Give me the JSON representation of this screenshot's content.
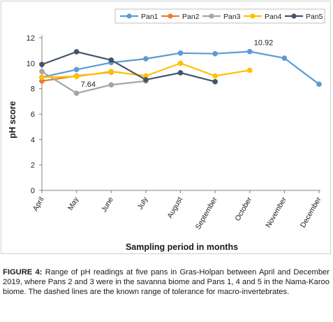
{
  "chart_data": {
    "type": "line",
    "xlabel": "Sampling period in months",
    "ylabel": "pH score",
    "categories": [
      "April",
      "May",
      "June",
      "July",
      "August",
      "September",
      "October",
      "November",
      "December"
    ],
    "ylim": [
      0,
      12
    ],
    "yticks": [
      0,
      2,
      4,
      6,
      8,
      10,
      12
    ],
    "grid": false,
    "legend_position": "top",
    "series": [
      {
        "name": "Pan1",
        "color": "#5b9bd5",
        "values": [
          8.9,
          9.5,
          10.05,
          10.35,
          10.8,
          10.75,
          10.92,
          10.4,
          8.35
        ]
      },
      {
        "name": "Pan2",
        "color": "#ed7d31",
        "values": [
          8.6,
          9.0,
          9.3,
          null,
          null,
          null,
          null,
          null,
          null
        ]
      },
      {
        "name": "Pan3",
        "color": "#a5a5a5",
        "values": [
          9.35,
          7.64,
          8.3,
          8.6,
          null,
          null,
          null,
          null,
          null
        ]
      },
      {
        "name": "Pan4",
        "color": "#ffc000",
        "values": [
          8.9,
          8.95,
          9.35,
          9.0,
          10.0,
          9.0,
          9.45,
          null,
          null
        ]
      },
      {
        "name": "Pan5",
        "color": "#44546a",
        "values": [
          9.9,
          10.9,
          10.25,
          8.7,
          9.25,
          8.55,
          null,
          null,
          null
        ]
      }
    ],
    "annotations": [
      {
        "text": "10.92",
        "series": "Pan1",
        "category": "October"
      },
      {
        "text": "7.64",
        "series": "Pan3",
        "category": "May"
      }
    ]
  },
  "caption": {
    "label": "FIGURE 4:",
    "text": " Range of pH readings at five pans in Gras-Holpan between April and December 2019, where Pans 2 and 3 were in the savanna biome and Pans 1, 4 and 5 in the Nama-Karoo biome. The dashed lines are the known range of tolerance for macro-invertebrates."
  }
}
